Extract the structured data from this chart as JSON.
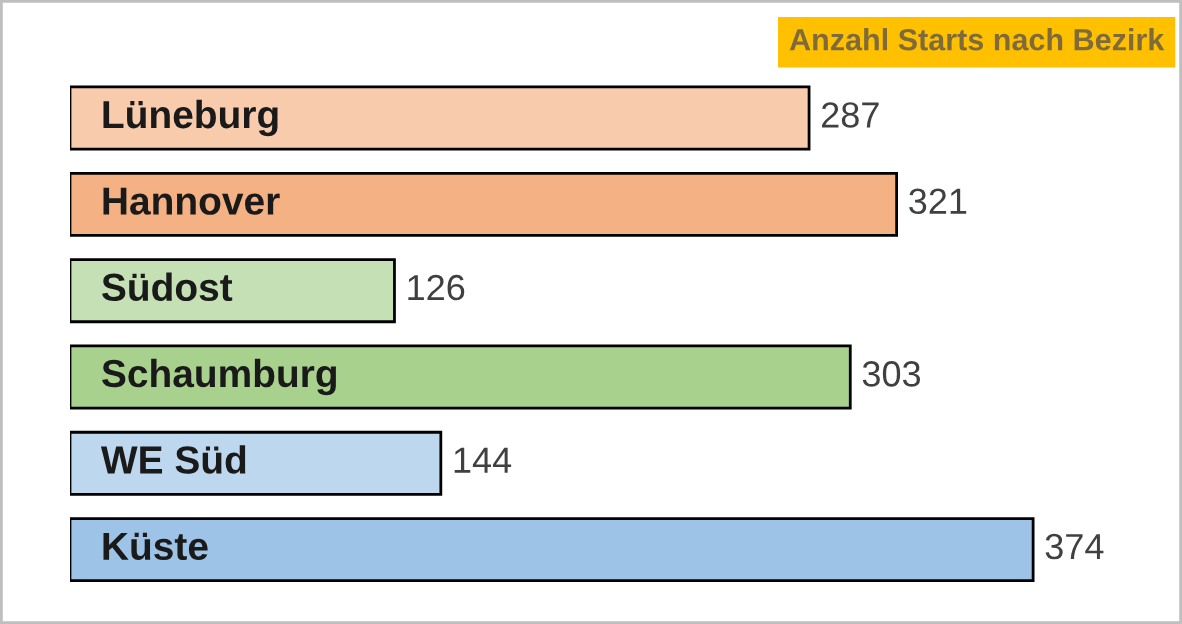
{
  "chart_data": {
    "type": "bar",
    "orientation": "horizontal",
    "title": "Anzahl Starts nach Bezirk",
    "categories": [
      "Lüneburg",
      "Hannover",
      "Südost",
      "Schaumburg",
      "WE Süd",
      "Küste"
    ],
    "values": [
      287,
      321,
      126,
      303,
      144,
      374
    ],
    "colors": [
      "#f8cbad",
      "#f4b183",
      "#c5e0b4",
      "#a9d18e",
      "#bdd7ee",
      "#9dc3e6"
    ],
    "data_labels": true
  }
}
